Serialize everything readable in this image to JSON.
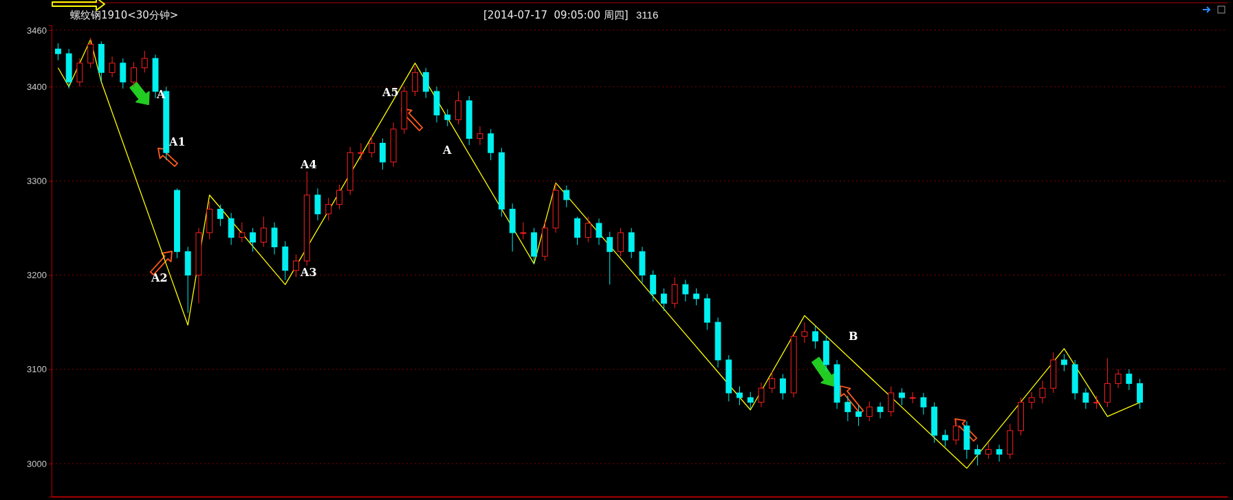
{
  "chart_data": {
    "type": "candlestick",
    "title": "螺纹钢1910<30分钟>",
    "subtitle": "[2014-07-17  09:05:00 周四]",
    "annotations": [
      "3116",
      "A",
      "A1",
      "A2",
      "A3",
      "A4",
      "A5",
      "A",
      "B"
    ],
    "categories": [
      null,
      null,
      null,
      null,
      null,
      null,
      null,
      null,
      null,
      null,
      null,
      null,
      null,
      null,
      null,
      null,
      null,
      null,
      null,
      null,
      null,
      null,
      null,
      null,
      null,
      null,
      null,
      null,
      null,
      null,
      null,
      null,
      null,
      null,
      null,
      null,
      null,
      null,
      null,
      null,
      null,
      null,
      null,
      null,
      null,
      null,
      null,
      null,
      null,
      null,
      null,
      null,
      null,
      null,
      null,
      null,
      null,
      null,
      null,
      null,
      null,
      null,
      null,
      null,
      null,
      null,
      null,
      null,
      null,
      null,
      null,
      null,
      null,
      null,
      null,
      null,
      null,
      null,
      null,
      null,
      null,
      null,
      null,
      null,
      null,
      null,
      null,
      null,
      null,
      null,
      null,
      null,
      null,
      null,
      null,
      null,
      null,
      null,
      null,
      null,
      null
    ],
    "ohlc": [
      [
        3440,
        3446,
        3428,
        3435
      ],
      [
        3435,
        3440,
        3398,
        3405
      ],
      [
        3405,
        3430,
        3400,
        3425
      ],
      [
        3425,
        3452,
        3420,
        3445
      ],
      [
        3445,
        3448,
        3405,
        3415
      ],
      [
        3415,
        3432,
        3410,
        3425
      ],
      [
        3425,
        3430,
        3398,
        3405
      ],
      [
        3405,
        3426,
        3400,
        3420
      ],
      [
        3420,
        3438,
        3415,
        3430
      ],
      [
        3430,
        3434,
        3388,
        3395
      ],
      [
        3395,
        3400,
        3322,
        3330
      ],
      [
        3290,
        3292,
        3218,
        3225
      ],
      [
        3225,
        3230,
        3160,
        3200
      ],
      [
        3200,
        3250,
        3170,
        3245
      ],
      [
        3245,
        3278,
        3238,
        3270
      ],
      [
        3270,
        3275,
        3252,
        3260
      ],
      [
        3260,
        3266,
        3232,
        3240
      ],
      [
        3240,
        3256,
        3235,
        3245
      ],
      [
        3245,
        3250,
        3225,
        3235
      ],
      [
        3235,
        3262,
        3230,
        3250
      ],
      [
        3250,
        3256,
        3222,
        3230
      ],
      [
        3230,
        3236,
        3195,
        3205
      ],
      [
        3205,
        3222,
        3198,
        3215
      ],
      [
        3215,
        3310,
        3210,
        3285
      ],
      [
        3285,
        3292,
        3258,
        3265
      ],
      [
        3265,
        3282,
        3258,
        3275
      ],
      [
        3275,
        3296,
        3270,
        3290
      ],
      [
        3290,
        3336,
        3285,
        3330
      ],
      [
        3330,
        3340,
        3322,
        3330
      ],
      [
        3330,
        3348,
        3325,
        3340
      ],
      [
        3340,
        3345,
        3312,
        3320
      ],
      [
        3320,
        3362,
        3315,
        3355
      ],
      [
        3355,
        3400,
        3350,
        3395
      ],
      [
        3395,
        3422,
        3390,
        3415
      ],
      [
        3415,
        3420,
        3388,
        3395
      ],
      [
        3395,
        3400,
        3362,
        3370
      ],
      [
        3370,
        3376,
        3358,
        3365
      ],
      [
        3365,
        3395,
        3360,
        3385
      ],
      [
        3385,
        3390,
        3338,
        3345
      ],
      [
        3345,
        3358,
        3338,
        3350
      ],
      [
        3350,
        3355,
        3322,
        3330
      ],
      [
        3330,
        3335,
        3262,
        3270
      ],
      [
        3270,
        3276,
        3225,
        3245
      ],
      [
        3245,
        3256,
        3238,
        3245
      ],
      [
        3245,
        3250,
        3212,
        3220
      ],
      [
        3220,
        3258,
        3215,
        3250
      ],
      [
        3250,
        3298,
        3245,
        3290
      ],
      [
        3290,
        3295,
        3272,
        3280
      ],
      [
        3260,
        3262,
        3232,
        3240
      ],
      [
        3240,
        3262,
        3235,
        3255
      ],
      [
        3255,
        3260,
        3232,
        3240
      ],
      [
        3240,
        3246,
        3190,
        3225
      ],
      [
        3225,
        3250,
        3220,
        3245
      ],
      [
        3245,
        3250,
        3218,
        3225
      ],
      [
        3225,
        3230,
        3192,
        3200
      ],
      [
        3200,
        3205,
        3172,
        3180
      ],
      [
        3180,
        3186,
        3162,
        3170
      ],
      [
        3170,
        3198,
        3165,
        3190
      ],
      [
        3190,
        3195,
        3172,
        3180
      ],
      [
        3180,
        3186,
        3168,
        3175
      ],
      [
        3175,
        3180,
        3142,
        3150
      ],
      [
        3150,
        3155,
        3102,
        3110
      ],
      [
        3110,
        3115,
        3066,
        3075
      ],
      [
        3075,
        3082,
        3062,
        3070
      ],
      [
        3070,
        3076,
        3058,
        3065
      ],
      [
        3065,
        3086,
        3060,
        3080
      ],
      [
        3080,
        3098,
        3075,
        3090
      ],
      [
        3090,
        3095,
        3068,
        3075
      ],
      [
        3075,
        3140,
        3070,
        3135
      ],
      [
        3135,
        3150,
        3128,
        3140
      ],
      [
        3140,
        3146,
        3122,
        3130
      ],
      [
        3130,
        3136,
        3098,
        3105
      ],
      [
        3105,
        3110,
        3058,
        3065
      ],
      [
        3065,
        3072,
        3045,
        3055
      ],
      [
        3055,
        3062,
        3040,
        3050
      ],
      [
        3050,
        3066,
        3045,
        3060
      ],
      [
        3060,
        3065,
        3048,
        3055
      ],
      [
        3055,
        3082,
        3050,
        3075
      ],
      [
        3075,
        3080,
        3062,
        3070
      ],
      [
        3070,
        3076,
        3064,
        3070
      ],
      [
        3070,
        3075,
        3052,
        3060
      ],
      [
        3060,
        3065,
        3022,
        3030
      ],
      [
        3030,
        3036,
        3018,
        3025
      ],
      [
        3025,
        3046,
        3020,
        3040
      ],
      [
        3040,
        3045,
        3005,
        3015
      ],
      [
        3015,
        3020,
        2998,
        3010
      ],
      [
        3010,
        3022,
        3005,
        3015
      ],
      [
        3015,
        3020,
        3002,
        3010
      ],
      [
        3010,
        3042,
        3005,
        3035
      ],
      [
        3035,
        3070,
        3030,
        3065
      ],
      [
        3065,
        3076,
        3058,
        3070
      ],
      [
        3070,
        3088,
        3064,
        3080
      ],
      [
        3080,
        3118,
        3075,
        3110
      ],
      [
        3110,
        3116,
        3098,
        3105
      ],
      [
        3105,
        3110,
        3068,
        3075
      ],
      [
        3075,
        3080,
        3058,
        3065
      ],
      [
        3065,
        3072,
        3058,
        3065
      ],
      [
        3065,
        3112,
        3060,
        3085
      ],
      [
        3085,
        3100,
        3080,
        3095
      ],
      [
        3095,
        3100,
        3078,
        3085
      ],
      [
        3085,
        3090,
        3058,
        3065
      ]
    ],
    "series": [
      {
        "type": "line",
        "color": "#ffff00",
        "values": [
          3420,
          3400,
          null,
          3450,
          3405,
          null,
          null,
          null,
          null,
          null,
          null,
          null,
          3147,
          null,
          3285,
          null,
          null,
          null,
          null,
          null,
          null,
          3190,
          null,
          null,
          null,
          null,
          null,
          null,
          null,
          null,
          null,
          null,
          null,
          3425,
          null,
          null,
          null,
          null,
          null,
          null,
          null,
          null,
          null,
          null,
          3212,
          null,
          3298,
          null,
          null,
          null,
          null,
          null,
          null,
          null,
          null,
          null,
          null,
          null,
          null,
          null,
          null,
          null,
          null,
          null,
          3057,
          null,
          null,
          null,
          null,
          3157,
          null,
          null,
          null,
          null,
          null,
          null,
          null,
          null,
          null,
          null,
          null,
          null,
          null,
          null,
          2995,
          null,
          null,
          null,
          null,
          null,
          null,
          null,
          null,
          3122,
          null,
          null,
          null,
          3050,
          null,
          null,
          3065
        ]
      }
    ],
    "ylim": [
      2965,
      3465
    ],
    "yticks": [
      3000,
      3100,
      3200,
      3300,
      3400,
      3460
    ],
    "grid": "y",
    "tick_labels": "y"
  }
}
